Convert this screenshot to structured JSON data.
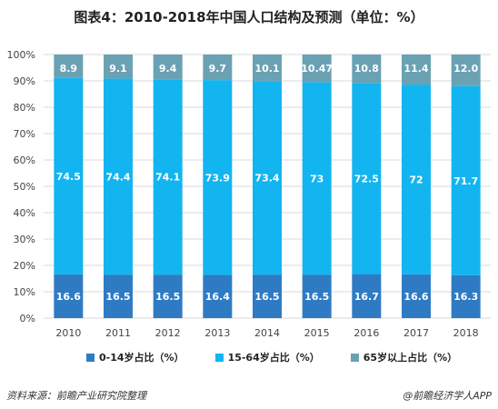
{
  "title": "图表4：2010-2018年中国人口结构及预测（单位：%）",
  "footer": {
    "source": "资料来源：前瞻产业研究院整理",
    "brand": "@前瞻经济学人APP"
  },
  "colors": {
    "age_0_14": "#2E7BC4",
    "age_15_64": "#12B5F0",
    "age_65_plus": "#6AA1B3",
    "grid": "#d9d9d9",
    "axis_text": "#444444"
  },
  "chart_data": {
    "type": "bar",
    "stacked": true,
    "percent_stacked": true,
    "categories": [
      "2010",
      "2011",
      "2012",
      "2013",
      "2014",
      "2015",
      "2016",
      "2017",
      "2018"
    ],
    "series": [
      {
        "name": "0-14岁占比（%）",
        "values": [
          16.6,
          16.5,
          16.5,
          16.4,
          16.5,
          16.5,
          16.7,
          16.6,
          16.3
        ],
        "labels": [
          "16.6",
          "16.5",
          "16.5",
          "16.4",
          "16.5",
          "16.5",
          "16.7",
          "16.6",
          "16.3"
        ]
      },
      {
        "name": "15-64岁占比（%）",
        "values": [
          74.5,
          74.4,
          74.1,
          73.9,
          73.4,
          73,
          72.5,
          72,
          71.7
        ],
        "labels": [
          "74.5",
          "74.4",
          "74.1",
          "73.9",
          "73.4",
          "73",
          "72.5",
          "72",
          "71.7"
        ]
      },
      {
        "name": "65岁以上占比（%）",
        "values": [
          8.9,
          9.1,
          9.4,
          9.7,
          10.1,
          10.47,
          10.8,
          11.4,
          12.0
        ],
        "labels": [
          "8.9",
          "9.1",
          "9.4",
          "9.7",
          "10.1",
          "10.47",
          "10.8",
          "11.4",
          "12.0"
        ]
      }
    ],
    "yticks": [
      "0%",
      "10%",
      "20%",
      "30%",
      "40%",
      "50%",
      "60%",
      "70%",
      "80%",
      "90%",
      "100%"
    ],
    "ylim": [
      0,
      100
    ],
    "grid": true,
    "legend_position": "bottom"
  }
}
